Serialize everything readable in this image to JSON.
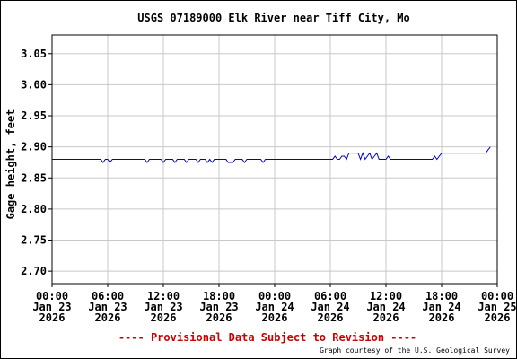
{
  "chart_data": {
    "type": "line",
    "title": "USGS 07189000 Elk River near Tiff City, Mo",
    "ylabel": "Gage height, feet",
    "xlabel": "",
    "ylim": [
      2.68,
      3.08
    ],
    "xlim_hours": [
      0,
      48
    ],
    "grid": true,
    "y_ticks": [
      "3.05",
      "3.00",
      "2.95",
      "2.90",
      "2.85",
      "2.80",
      "2.75",
      "2.70"
    ],
    "y_tick_values": [
      3.05,
      3.0,
      2.95,
      2.9,
      2.85,
      2.8,
      2.75,
      2.7
    ],
    "x_ticks": [
      {
        "hour": 0,
        "time": "00:00",
        "date": "Jan 23",
        "year": "2026"
      },
      {
        "hour": 6,
        "time": "06:00",
        "date": "Jan 23",
        "year": "2026"
      },
      {
        "hour": 12,
        "time": "12:00",
        "date": "Jan 23",
        "year": "2026"
      },
      {
        "hour": 18,
        "time": "18:00",
        "date": "Jan 23",
        "year": "2026"
      },
      {
        "hour": 24,
        "time": "00:00",
        "date": "Jan 24",
        "year": "2026"
      },
      {
        "hour": 30,
        "time": "06:00",
        "date": "Jan 24",
        "year": "2026"
      },
      {
        "hour": 36,
        "time": "12:00",
        "date": "Jan 24",
        "year": "2026"
      },
      {
        "hour": 42,
        "time": "18:00",
        "date": "Jan 24",
        "year": "2026"
      },
      {
        "hour": 48,
        "time": "00:00",
        "date": "Jan 25",
        "year": "2026"
      }
    ],
    "series": [
      {
        "color": "#0000cc",
        "points": [
          [
            0,
            2.88
          ],
          [
            5.25,
            2.88
          ],
          [
            5.5,
            2.875
          ],
          [
            5.75,
            2.88
          ],
          [
            6.0,
            2.88
          ],
          [
            6.25,
            2.875
          ],
          [
            6.5,
            2.88
          ],
          [
            10.0,
            2.88
          ],
          [
            10.25,
            2.875
          ],
          [
            10.5,
            2.88
          ],
          [
            11.75,
            2.88
          ],
          [
            12.0,
            2.875
          ],
          [
            12.25,
            2.88
          ],
          [
            13.0,
            2.88
          ],
          [
            13.25,
            2.875
          ],
          [
            13.5,
            2.88
          ],
          [
            14.25,
            2.88
          ],
          [
            14.5,
            2.875
          ],
          [
            14.75,
            2.88
          ],
          [
            15.5,
            2.88
          ],
          [
            15.75,
            2.875
          ],
          [
            16.0,
            2.88
          ],
          [
            16.5,
            2.88
          ],
          [
            16.75,
            2.875
          ],
          [
            17.0,
            2.88
          ],
          [
            17.25,
            2.875
          ],
          [
            17.5,
            2.88
          ],
          [
            18.75,
            2.88
          ],
          [
            19.0,
            2.875
          ],
          [
            19.5,
            2.875
          ],
          [
            19.75,
            2.88
          ],
          [
            20.5,
            2.88
          ],
          [
            20.75,
            2.875
          ],
          [
            21.0,
            2.88
          ],
          [
            22.5,
            2.88
          ],
          [
            22.75,
            2.875
          ],
          [
            23.0,
            2.88
          ],
          [
            30.25,
            2.88
          ],
          [
            30.5,
            2.885
          ],
          [
            30.75,
            2.88
          ],
          [
            31.0,
            2.88
          ],
          [
            31.25,
            2.885
          ],
          [
            31.5,
            2.885
          ],
          [
            31.75,
            2.88
          ],
          [
            32.0,
            2.89
          ],
          [
            33.0,
            2.89
          ],
          [
            33.25,
            2.88
          ],
          [
            33.5,
            2.89
          ],
          [
            33.75,
            2.88
          ],
          [
            34.0,
            2.885
          ],
          [
            34.25,
            2.89
          ],
          [
            34.5,
            2.88
          ],
          [
            34.75,
            2.885
          ],
          [
            35.0,
            2.89
          ],
          [
            35.25,
            2.88
          ],
          [
            36.0,
            2.88
          ],
          [
            36.25,
            2.885
          ],
          [
            36.5,
            2.88
          ],
          [
            41.0,
            2.88
          ],
          [
            41.25,
            2.885
          ],
          [
            41.5,
            2.88
          ],
          [
            41.75,
            2.885
          ],
          [
            42.0,
            2.89
          ],
          [
            46.75,
            2.89
          ],
          [
            47.0,
            2.895
          ],
          [
            47.25,
            2.9
          ]
        ]
      }
    ],
    "footer_notice": "---- Provisional Data Subject to Revision ----",
    "credit": "Graph courtesy of the U.S. Geological Survey"
  }
}
